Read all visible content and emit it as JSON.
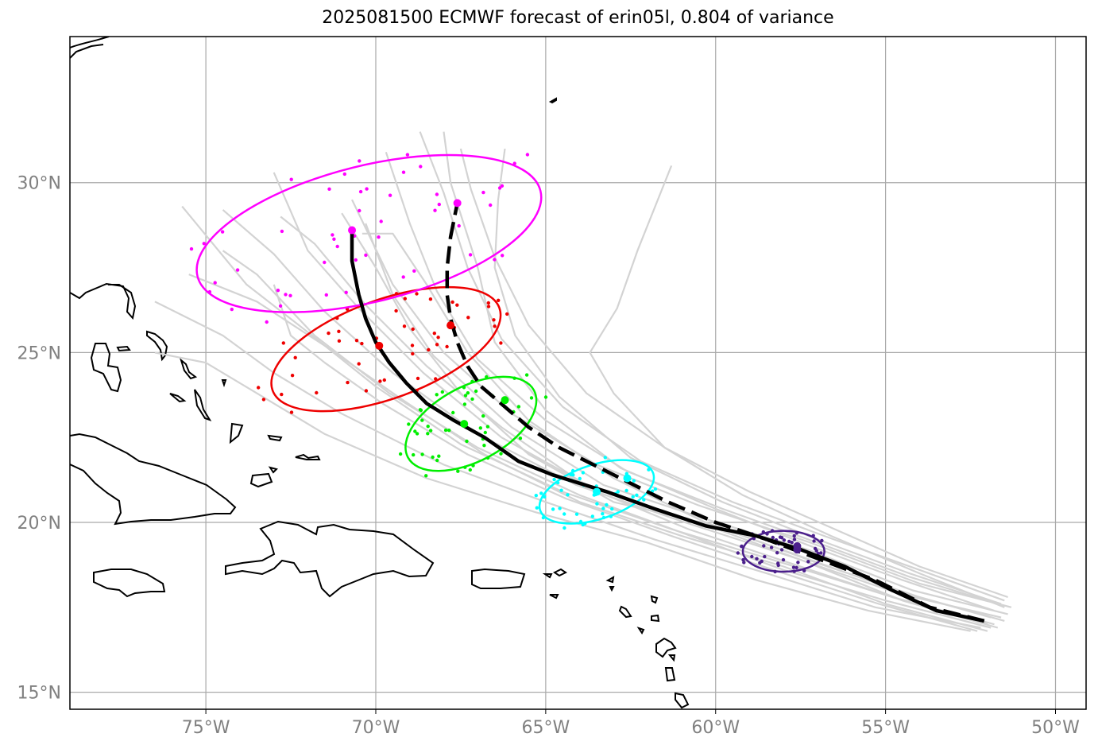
{
  "title": "2025081500 ECMWF forecast of erin05l, 0.804 of variance",
  "map": {
    "lon_range": [
      -79,
      -49.1
    ],
    "lat_range": [
      14.5,
      34.3
    ],
    "lon_ticks": [
      -75,
      -70,
      -65,
      -60,
      -55,
      -50
    ],
    "lon_tick_labels": [
      "75°W",
      "70°W",
      "65°W",
      "60°W",
      "55°W",
      "50°W"
    ],
    "lat_ticks": [
      15,
      20,
      25,
      30
    ],
    "lat_tick_labels": [
      "15°N",
      "20°N",
      "25°N",
      "30°N"
    ],
    "grid": true,
    "coastline_color": "#000000",
    "gridline_color": "#a9a9a9"
  },
  "chart_data": {
    "type": "map",
    "ensemble_track_color": "#d3d3d3",
    "mean_track_solid": [
      [
        -52.1,
        17.1
      ],
      [
        -53.5,
        17.4
      ],
      [
        -54.8,
        18.0
      ],
      [
        -56.2,
        18.7
      ],
      [
        -57.5,
        19.2
      ],
      [
        -58.8,
        19.6
      ],
      [
        -60.3,
        19.9
      ],
      [
        -61.8,
        20.4
      ],
      [
        -63.2,
        20.9
      ],
      [
        -64.8,
        21.4
      ],
      [
        -65.8,
        21.8
      ],
      [
        -66.8,
        22.5
      ],
      [
        -67.7,
        23.0
      ],
      [
        -68.5,
        23.5
      ],
      [
        -69.1,
        24.1
      ],
      [
        -69.6,
        24.7
      ],
      [
        -70.0,
        25.3
      ],
      [
        -70.3,
        26.0
      ],
      [
        -70.5,
        26.7
      ],
      [
        -70.7,
        27.7
      ],
      [
        -70.7,
        28.6
      ]
    ],
    "mean_track_dashed": [
      [
        -52.1,
        17.1
      ],
      [
        -53.7,
        17.5
      ],
      [
        -55.3,
        18.3
      ],
      [
        -56.9,
        18.9
      ],
      [
        -58.5,
        19.5
      ],
      [
        -60.0,
        20.0
      ],
      [
        -61.4,
        20.6
      ],
      [
        -62.6,
        21.2
      ],
      [
        -63.6,
        21.7
      ],
      [
        -64.6,
        22.2
      ],
      [
        -65.5,
        22.8
      ],
      [
        -66.2,
        23.4
      ],
      [
        -66.9,
        24.0
      ],
      [
        -67.3,
        24.6
      ],
      [
        -67.6,
        25.3
      ],
      [
        -67.8,
        26.0
      ],
      [
        -67.9,
        26.7
      ],
      [
        -67.9,
        27.5
      ],
      [
        -67.8,
        28.4
      ],
      [
        -67.6,
        29.4
      ]
    ],
    "ensemble_tracks": [
      [
        [
          -51.5,
          17.1
        ],
        [
          -54.0,
          17.8
        ],
        [
          -57.0,
          18.8
        ],
        [
          -60.0,
          19.9
        ],
        [
          -63.0,
          20.6
        ],
        [
          -65.5,
          22.0
        ],
        [
          -67.5,
          23.8
        ],
        [
          -69.0,
          25.7
        ],
        [
          -70.0,
          27.5
        ],
        [
          -71.0,
          29.1
        ]
      ],
      [
        [
          -51.4,
          17.3
        ],
        [
          -54.2,
          18.0
        ],
        [
          -57.3,
          19.2
        ],
        [
          -60.3,
          20.1
        ],
        [
          -63.3,
          21.1
        ],
        [
          -66.0,
          22.8
        ],
        [
          -68.3,
          24.9
        ],
        [
          -69.5,
          26.7
        ],
        [
          -70.3,
          28.8
        ]
      ],
      [
        [
          -51.3,
          17.5
        ],
        [
          -54.0,
          18.2
        ],
        [
          -57.2,
          19.4
        ],
        [
          -60.5,
          20.5
        ],
        [
          -63.5,
          21.7
        ],
        [
          -66.0,
          23.2
        ],
        [
          -68.0,
          25.0
        ],
        [
          -69.5,
          27.0
        ],
        [
          -70.7,
          29.5
        ]
      ],
      [
        [
          -51.7,
          16.9
        ],
        [
          -54.5,
          17.7
        ],
        [
          -57.5,
          18.9
        ],
        [
          -60.5,
          20.0
        ],
        [
          -63.6,
          21.0
        ],
        [
          -66.3,
          22.5
        ],
        [
          -68.6,
          24.4
        ],
        [
          -70.5,
          26.3
        ],
        [
          -72.0,
          28.0
        ],
        [
          -73.0,
          30.3
        ]
      ],
      [
        [
          -52.0,
          16.8
        ],
        [
          -55.0,
          17.6
        ],
        [
          -58.0,
          18.7
        ],
        [
          -61.0,
          19.6
        ],
        [
          -64.0,
          20.6
        ],
        [
          -66.8,
          22.0
        ],
        [
          -69.2,
          23.6
        ],
        [
          -71.5,
          25.2
        ],
        [
          -73.5,
          26.5
        ],
        [
          -75.5,
          27.3
        ]
      ],
      [
        [
          -51.6,
          17.2
        ],
        [
          -54.6,
          17.9
        ],
        [
          -57.8,
          19.0
        ],
        [
          -60.9,
          20.0
        ],
        [
          -64.1,
          21.1
        ],
        [
          -67.0,
          22.6
        ],
        [
          -69.5,
          24.4
        ],
        [
          -71.5,
          26.2
        ],
        [
          -73.0,
          27.9
        ],
        [
          -74.5,
          29.2
        ]
      ],
      [
        [
          -51.8,
          17.0
        ],
        [
          -54.8,
          17.8
        ],
        [
          -58.0,
          18.8
        ],
        [
          -61.3,
          19.8
        ],
        [
          -64.5,
          20.9
        ],
        [
          -67.5,
          22.3
        ],
        [
          -70.0,
          24.0
        ],
        [
          -72.0,
          25.6
        ],
        [
          -73.8,
          27.0
        ],
        [
          -75.7,
          29.3
        ]
      ],
      [
        [
          -52.2,
          16.9
        ],
        [
          -55.3,
          17.5
        ],
        [
          -58.5,
          18.5
        ],
        [
          -61.8,
          19.5
        ],
        [
          -65.0,
          20.6
        ],
        [
          -68.0,
          21.7
        ],
        [
          -71.0,
          23.2
        ],
        [
          -73.0,
          24.4
        ],
        [
          -74.5,
          25.5
        ],
        [
          -76.5,
          26.5
        ]
      ],
      [
        [
          -52.5,
          16.8
        ],
        [
          -55.5,
          17.4
        ],
        [
          -58.8,
          18.3
        ],
        [
          -62.0,
          19.4
        ],
        [
          -65.3,
          20.3
        ],
        [
          -68.5,
          21.3
        ],
        [
          -71.5,
          22.6
        ],
        [
          -73.5,
          23.8
        ],
        [
          -75.0,
          24.7
        ],
        [
          -76.5,
          25.0
        ]
      ],
      [
        [
          -51.7,
          17.6
        ],
        [
          -54.3,
          18.4
        ],
        [
          -57.0,
          19.4
        ],
        [
          -59.8,
          20.4
        ],
        [
          -62.6,
          21.5
        ],
        [
          -65.0,
          23.0
        ],
        [
          -67.0,
          24.8
        ],
        [
          -68.2,
          26.8
        ],
        [
          -69.0,
          28.8
        ],
        [
          -69.7,
          30.9
        ]
      ],
      [
        [
          -51.5,
          17.7
        ],
        [
          -54.0,
          18.6
        ],
        [
          -56.8,
          19.6
        ],
        [
          -59.5,
          20.6
        ],
        [
          -62.2,
          21.8
        ],
        [
          -64.5,
          23.4
        ],
        [
          -66.3,
          25.4
        ],
        [
          -67.3,
          27.5
        ],
        [
          -68.0,
          29.7
        ],
        [
          -68.7,
          31.5
        ]
      ],
      [
        [
          -51.4,
          17.8
        ],
        [
          -54.0,
          18.7
        ],
        [
          -56.5,
          19.8
        ],
        [
          -59.0,
          20.9
        ],
        [
          -61.5,
          22.2
        ],
        [
          -63.8,
          23.8
        ],
        [
          -65.5,
          25.8
        ],
        [
          -66.5,
          27.8
        ],
        [
          -67.2,
          29.8
        ],
        [
          -67.5,
          31.0
        ]
      ],
      [
        [
          -51.6,
          17.6
        ],
        [
          -54.3,
          18.5
        ],
        [
          -57.0,
          19.5
        ],
        [
          -59.8,
          20.6
        ],
        [
          -62.5,
          21.9
        ],
        [
          -64.6,
          23.7
        ],
        [
          -65.9,
          25.5
        ],
        [
          -66.5,
          27.5
        ],
        [
          -66.4,
          29.5
        ],
        [
          -66.2,
          31.0
        ]
      ],
      [
        [
          -51.8,
          17.4
        ],
        [
          -54.5,
          18.3
        ],
        [
          -57.2,
          19.3
        ],
        [
          -60.0,
          20.4
        ],
        [
          -62.8,
          21.6
        ],
        [
          -65.0,
          23.3
        ],
        [
          -66.5,
          25.3
        ],
        [
          -67.0,
          27.5
        ],
        [
          -67.8,
          30.0
        ],
        [
          -68.0,
          31.5
        ]
      ],
      [
        [
          -51.5,
          17.5
        ],
        [
          -54.0,
          18.5
        ],
        [
          -56.6,
          19.6
        ],
        [
          -59.2,
          20.8
        ],
        [
          -61.5,
          22.2
        ],
        [
          -63.0,
          23.8
        ],
        [
          -63.7,
          25.0
        ],
        [
          -62.9,
          26.3
        ],
        [
          -62.3,
          28.0
        ],
        [
          -61.3,
          30.5
        ]
      ],
      [
        [
          -51.9,
          17.2
        ],
        [
          -54.7,
          18.0
        ],
        [
          -57.5,
          19.0
        ],
        [
          -60.3,
          20.0
        ],
        [
          -63.0,
          21.3
        ],
        [
          -65.5,
          23.0
        ],
        [
          -67.3,
          25.0
        ],
        [
          -68.5,
          27.0
        ],
        [
          -69.5,
          28.5
        ],
        [
          -70.4,
          28.5
        ]
      ],
      [
        [
          -52.0,
          17.0
        ],
        [
          -54.8,
          17.8
        ],
        [
          -57.8,
          18.8
        ],
        [
          -60.8,
          19.8
        ],
        [
          -63.7,
          21.0
        ],
        [
          -66.3,
          22.8
        ],
        [
          -68.5,
          24.6
        ],
        [
          -70.3,
          26.4
        ],
        [
          -71.8,
          28.2
        ],
        [
          -72.8,
          29.0
        ]
      ],
      [
        [
          -51.9,
          16.9
        ],
        [
          -55.0,
          17.7
        ],
        [
          -58.0,
          18.6
        ],
        [
          -61.0,
          19.7
        ],
        [
          -64.0,
          20.8
        ],
        [
          -67.0,
          22.2
        ],
        [
          -69.6,
          23.8
        ],
        [
          -71.8,
          25.5
        ],
        [
          -73.5,
          27.3
        ],
        [
          -74.5,
          28.0
        ]
      ],
      [
        [
          -52.3,
          16.8
        ],
        [
          -55.2,
          17.6
        ],
        [
          -58.3,
          18.6
        ],
        [
          -61.3,
          19.6
        ],
        [
          -64.4,
          20.7
        ],
        [
          -67.3,
          22.0
        ],
        [
          -69.8,
          23.5
        ],
        [
          -71.5,
          24.7
        ],
        [
          -72.5,
          25.5
        ],
        [
          -73.0,
          27.0
        ]
      ]
    ],
    "forecast_points": [
      {
        "name": "purple",
        "color": "#4b1f8c",
        "mean_lonlat": [
          -57.6,
          19.2
        ],
        "ellipse": {
          "center": [
            -58.0,
            19.15
          ],
          "semi_axes_deg": [
            1.2,
            0.6
          ],
          "angle_deg": 0
        }
      },
      {
        "name": "cyan",
        "color": "#00ffff",
        "mean_lonlat": [
          -63.5,
          20.9
        ],
        "ellipse": {
          "center": [
            -63.5,
            20.9
          ],
          "semi_axes_deg": [
            1.75,
            0.8
          ],
          "angle_deg": -18
        }
      },
      {
        "name": "green",
        "color": "#00ee00",
        "mean_lonlat": [
          -67.4,
          22.9
        ],
        "ellipse": {
          "center": [
            -67.2,
            22.9
          ],
          "semi_axes_deg": [
            2.1,
            1.1
          ],
          "angle_deg": -28
        }
      },
      {
        "name": "red",
        "color": "#ee0000",
        "mean_lonlat": [
          -69.9,
          25.2
        ],
        "ellipse": {
          "center": [
            -69.7,
            25.1
          ],
          "semi_axes_deg": [
            3.55,
            1.45
          ],
          "angle_deg": -20
        }
      },
      {
        "name": "magenta",
        "color": "#ff00ff",
        "mean_lonlat": [
          -70.7,
          28.6
        ],
        "ellipse": {
          "center": [
            -70.2,
            28.5
          ],
          "semi_axes_deg": [
            5.2,
            2.0
          ],
          "angle_deg": -14
        }
      }
    ],
    "dashed_track_points": [
      {
        "color": "#ff00ff",
        "lonlat": [
          -67.6,
          29.4
        ]
      },
      {
        "color": "#ee0000",
        "lonlat": [
          -67.8,
          25.8
        ]
      },
      {
        "color": "#00ee00",
        "lonlat": [
          -66.2,
          23.6
        ]
      },
      {
        "color": "#00ffff",
        "lonlat": [
          -62.6,
          21.3
        ]
      },
      {
        "color": "#4b1f8c",
        "lonlat": [
          -57.6,
          19.3
        ]
      }
    ]
  }
}
